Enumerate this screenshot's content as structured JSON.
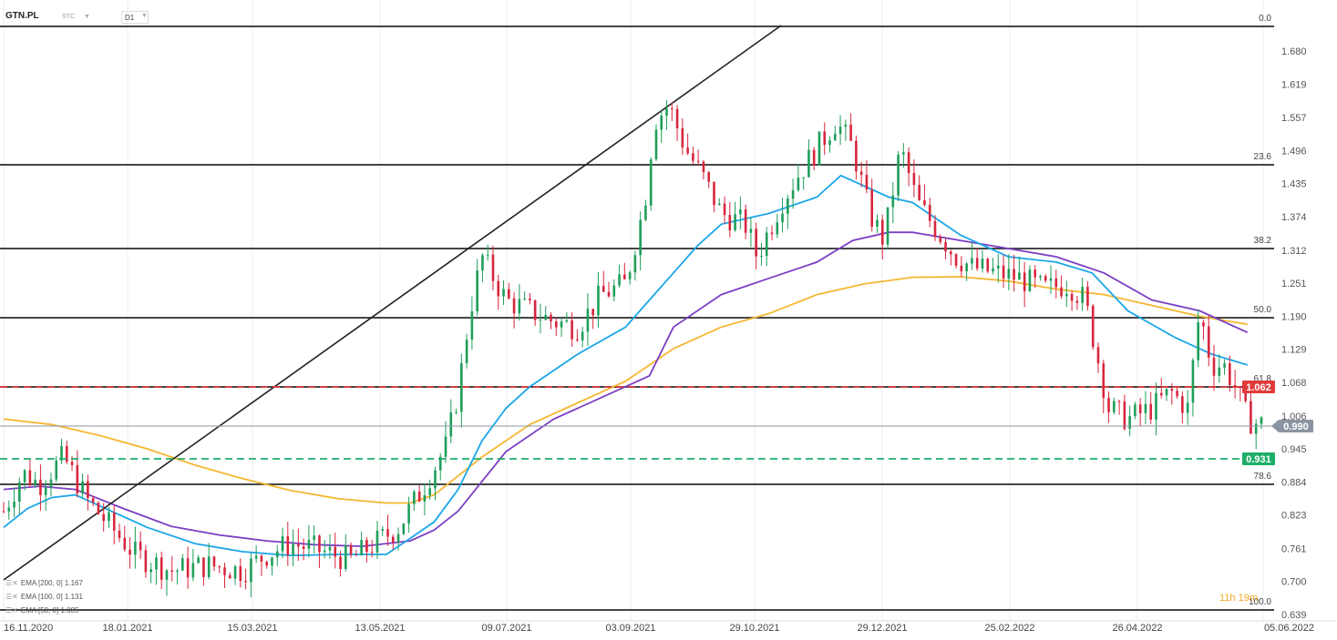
{
  "header": {
    "symbol": "GTN.PL",
    "instrument_type": "STC",
    "timeframe": "D1"
  },
  "legend": [
    {
      "label": "EMA [200,  0]  1.167"
    },
    {
      "label": "EMA [100,  0]  1.131"
    },
    {
      "label": "EMA [50,  0]  1.085"
    }
  ],
  "timer": "11h 19m",
  "chart_data": {
    "type": "candlestick",
    "y_ticks": [
      "1.680",
      "1.619",
      "1.557",
      "1.496",
      "1.435",
      "1.374",
      "1.312",
      "1.251",
      "1.190",
      "1.129",
      "1.068",
      "1.006",
      "0.945",
      "0.884",
      "0.823",
      "0.761",
      "0.700",
      "0.639"
    ],
    "x_ticks": [
      "16.11.2020",
      "18.01.2021",
      "15.03.2021",
      "13.05.2021",
      "09.07.2021",
      "03.09.2021",
      "29.10.2021",
      "29.12.2021",
      "25.02.2022",
      "26.04.2022",
      "05.06.2022"
    ],
    "ylim": [
      0.639,
      1.72
    ],
    "fibonacci": [
      {
        "label": "0.0",
        "price": 1.705
      },
      {
        "label": "23.6",
        "price": 1.467
      },
      {
        "label": "38.2",
        "price": 1.314
      },
      {
        "label": "50.0",
        "price": 1.191
      },
      {
        "label": "61.8",
        "price": 1.066
      },
      {
        "label": "78.6",
        "price": 0.881
      },
      {
        "label": "100.0",
        "price": 0.637
      }
    ],
    "levels": [
      {
        "label": "1.062",
        "price": 1.062,
        "color": "#e03b3b",
        "style": "dashed"
      },
      {
        "label": "0.931",
        "price": 0.931,
        "color": "#1fae6a",
        "style": "dashed"
      },
      {
        "label": "0.990",
        "price": 0.99,
        "color": "#8b95a1",
        "style": "solid"
      }
    ],
    "trendline": {
      "from": [
        "2020-11-16",
        0.64
      ],
      "to": [
        "2021-10-20",
        1.7
      ]
    },
    "series": [
      {
        "name": "EMA [200, 0]",
        "color": "#f5b731",
        "points": [
          [
            0,
            1.0
          ],
          [
            20,
            0.99
          ],
          [
            40,
            0.97
          ],
          [
            60,
            0.945
          ],
          [
            80,
            0.915
          ],
          [
            100,
            0.89
          ],
          [
            120,
            0.868
          ],
          [
            140,
            0.853
          ],
          [
            160,
            0.845
          ],
          [
            170,
            0.845
          ],
          [
            180,
            0.86
          ],
          [
            200,
            0.93
          ],
          [
            220,
            0.99
          ],
          [
            240,
            1.03
          ],
          [
            260,
            1.07
          ],
          [
            280,
            1.13
          ],
          [
            300,
            1.17
          ],
          [
            320,
            1.195
          ],
          [
            340,
            1.23
          ],
          [
            360,
            1.25
          ],
          [
            380,
            1.262
          ],
          [
            400,
            1.263
          ],
          [
            420,
            1.255
          ],
          [
            440,
            1.24
          ],
          [
            460,
            1.23
          ],
          [
            480,
            1.21
          ],
          [
            500,
            1.19
          ],
          [
            520,
            1.175
          ]
        ]
      },
      {
        "name": "EMA [100, 0]",
        "color": "#7b3fc4",
        "points": [
          [
            0,
            0.87
          ],
          [
            15,
            0.876
          ],
          [
            30,
            0.87
          ],
          [
            50,
            0.835
          ],
          [
            70,
            0.802
          ],
          [
            90,
            0.786
          ],
          [
            110,
            0.775
          ],
          [
            130,
            0.768
          ],
          [
            150,
            0.765
          ],
          [
            160,
            0.77
          ],
          [
            170,
            0.775
          ],
          [
            180,
            0.795
          ],
          [
            190,
            0.83
          ],
          [
            210,
            0.94
          ],
          [
            230,
            1.0
          ],
          [
            250,
            1.04
          ],
          [
            270,
            1.08
          ],
          [
            280,
            1.17
          ],
          [
            300,
            1.23
          ],
          [
            320,
            1.26
          ],
          [
            340,
            1.29
          ],
          [
            355,
            1.33
          ],
          [
            370,
            1.345
          ],
          [
            380,
            1.345
          ],
          [
            400,
            1.33
          ],
          [
            420,
            1.315
          ],
          [
            440,
            1.3
          ],
          [
            460,
            1.27
          ],
          [
            480,
            1.22
          ],
          [
            500,
            1.2
          ],
          [
            520,
            1.16
          ]
        ]
      },
      {
        "name": "EMA [50, 0]",
        "color": "#1ba6e8",
        "points": [
          [
            0,
            0.8
          ],
          [
            10,
            0.835
          ],
          [
            20,
            0.855
          ],
          [
            30,
            0.86
          ],
          [
            45,
            0.83
          ],
          [
            60,
            0.8
          ],
          [
            80,
            0.77
          ],
          [
            100,
            0.755
          ],
          [
            120,
            0.748
          ],
          [
            140,
            0.75
          ],
          [
            160,
            0.75
          ],
          [
            170,
            0.78
          ],
          [
            180,
            0.81
          ],
          [
            190,
            0.87
          ],
          [
            200,
            0.96
          ],
          [
            210,
            1.02
          ],
          [
            220,
            1.06
          ],
          [
            240,
            1.12
          ],
          [
            260,
            1.17
          ],
          [
            270,
            1.22
          ],
          [
            280,
            1.27
          ],
          [
            290,
            1.32
          ],
          [
            300,
            1.36
          ],
          [
            320,
            1.38
          ],
          [
            340,
            1.41
          ],
          [
            350,
            1.45
          ],
          [
            370,
            1.41
          ],
          [
            380,
            1.4
          ],
          [
            400,
            1.34
          ],
          [
            420,
            1.3
          ],
          [
            440,
            1.29
          ],
          [
            455,
            1.27
          ],
          [
            470,
            1.2
          ],
          [
            490,
            1.15
          ],
          [
            505,
            1.12
          ],
          [
            520,
            1.1
          ]
        ]
      }
    ]
  }
}
